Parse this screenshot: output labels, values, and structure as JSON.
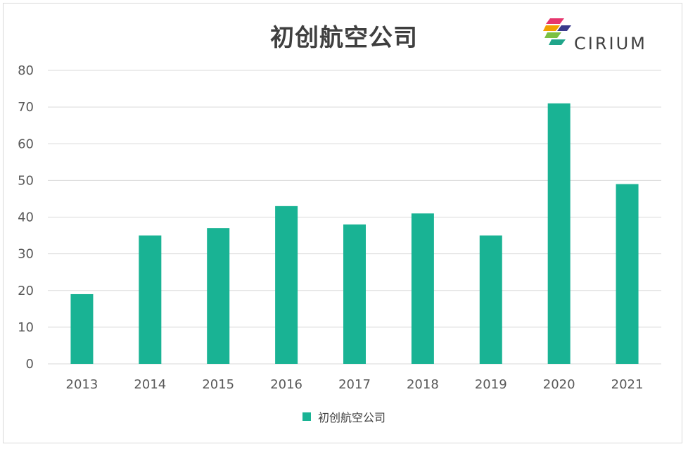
{
  "logo": {
    "text": "CIRIUM",
    "colors": [
      "#e6356d",
      "#f2a000",
      "#7ac143",
      "#1fa58a",
      "#3a3a8c"
    ]
  },
  "colors": {
    "bar": "#19b394",
    "grid": "#d9d9d9",
    "axis_text": "#595959"
  },
  "chart_data": {
    "type": "bar",
    "title": "初创航空公司",
    "categories": [
      "2013",
      "2014",
      "2015",
      "2016",
      "2017",
      "2018",
      "2019",
      "2020",
      "2021"
    ],
    "series": [
      {
        "name": "初创航空公司",
        "values": [
          19,
          35,
          37,
          43,
          38,
          41,
          35,
          71,
          49
        ]
      }
    ],
    "ylim": [
      0,
      80
    ],
    "yticks": [
      0,
      10,
      20,
      30,
      40,
      50,
      60,
      70,
      80
    ],
    "grid": true,
    "legend": "bottom-center",
    "xlabel": "",
    "ylabel": ""
  }
}
